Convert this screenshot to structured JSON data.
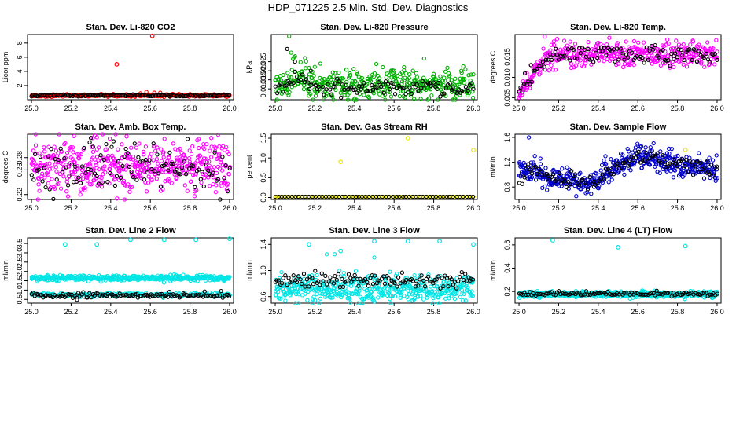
{
  "page": {
    "title": "HDP_071225  2.5 Min. Std. Dev. Diagnostics"
  },
  "chart_data": [
    {
      "id": "p1",
      "type": "scatter",
      "title": "Stan. Dev. Li-820 CO2",
      "xlabel": "",
      "ylabel": "Licor ppm",
      "xlim": [
        24.98,
        26.02
      ],
      "ylim": [
        0,
        9.2
      ],
      "xticks": [
        "25.0",
        "25.2",
        "25.4",
        "25.6",
        "25.8",
        "26.0"
      ],
      "xtick_values": [
        25.0,
        25.2,
        25.4,
        25.6,
        25.8,
        26.0
      ],
      "yticks": [
        "2",
        "4",
        "6",
        "8"
      ],
      "ytick_values": [
        2,
        4,
        6,
        8
      ],
      "series": [
        {
          "name": "primary",
          "color": "#ff0000",
          "gen": {
            "base": 0.6,
            "noise": 0.08,
            "n": 300
          },
          "extra": [
            [
              25.01,
              0.5
            ],
            [
              25.55,
              0.9
            ],
            [
              25.58,
              1.1
            ],
            [
              25.62,
              1.0
            ],
            [
              25.65,
              1.0
            ],
            [
              25.8,
              0.8
            ],
            [
              25.95,
              0.7
            ]
          ]
        },
        {
          "name": "reference",
          "color": "#000000",
          "gen": {
            "base": 0.6,
            "noise": 0.07,
            "n": 120
          },
          "extra": []
        }
      ],
      "outliers": [
        {
          "x": 25.43,
          "y": 5.0,
          "color": "#ff0000"
        },
        {
          "x": 25.61,
          "y": 9.0,
          "color": "#ff0000"
        }
      ]
    },
    {
      "id": "p2",
      "type": "scatter",
      "title": "Stan. Dev. Li-820 Pressure",
      "xlabel": "",
      "ylabel": "kPa",
      "xlim": [
        24.98,
        26.02
      ],
      "ylim": [
        0.004,
        0.04
      ],
      "xticks": [
        "25.0",
        "25.2",
        "25.4",
        "25.6",
        "25.8",
        "26.0"
      ],
      "xtick_values": [
        25.0,
        25.2,
        25.4,
        25.6,
        25.8,
        26.0
      ],
      "yticks": [
        "0.010",
        "0.015",
        "0.020",
        "0.025"
      ],
      "ytick_values": [
        0.01,
        0.015,
        0.02,
        0.025
      ],
      "series": [
        {
          "name": "primary",
          "color": "#00b000",
          "gen": {
            "base": 0.012,
            "noise": 0.004,
            "n": 420
          },
          "extra": [
            [
              25.07,
              0.039
            ],
            [
              25.08,
              0.03
            ],
            [
              25.1,
              0.028
            ],
            [
              25.15,
              0.027
            ],
            [
              25.6,
              0.02
            ],
            [
              25.65,
              0.022
            ],
            [
              26.0,
              0.018
            ]
          ]
        },
        {
          "name": "reference",
          "color": "#000000",
          "gen": {
            "base": 0.011,
            "noise": 0.002,
            "n": 110
          },
          "extra": [
            [
              25.06,
              0.032
            ],
            [
              25.1,
              0.025
            ],
            [
              25.18,
              0.02
            ]
          ]
        }
      ],
      "outliers": []
    },
    {
      "id": "p3",
      "type": "scatter",
      "title": "Stan. Dev. Li-820 Temp.",
      "xlabel": "",
      "ylabel": "degrees C",
      "xlim": [
        24.98,
        26.02
      ],
      "ylim": [
        0.0045,
        0.0205
      ],
      "xticks": [
        "25.0",
        "25.2",
        "25.4",
        "25.6",
        "25.8",
        "26.0"
      ],
      "xtick_values": [
        25.0,
        25.2,
        25.4,
        25.6,
        25.8,
        26.0
      ],
      "yticks": [
        "0.005",
        "0.010",
        "0.015"
      ],
      "ytick_values": [
        0.005,
        0.01,
        0.015
      ],
      "series": [
        {
          "name": "primary",
          "color": "#ff00ff",
          "gen": {
            "base": 0.0155,
            "noise": 0.0015,
            "n": 420
          },
          "extra": [
            [
              25.0,
              0.005
            ],
            [
              25.01,
              0.007
            ],
            [
              25.02,
              0.009
            ],
            [
              25.04,
              0.011
            ],
            [
              25.06,
              0.013
            ],
            [
              25.13,
              0.02
            ]
          ]
        },
        {
          "name": "reference",
          "color": "#000000",
          "gen": {
            "base": 0.0155,
            "noise": 0.0012,
            "n": 110
          },
          "extra": [
            [
              25.03,
              0.011
            ],
            [
              25.06,
              0.013
            ]
          ]
        }
      ],
      "outliers": []
    },
    {
      "id": "p4",
      "type": "scatter",
      "title": "Stan. Dev. Amb. Box Temp.",
      "xlabel": "",
      "ylabel": "degrees C",
      "xlim": [
        24.98,
        26.02
      ],
      "ylim": [
        0.212,
        0.318
      ],
      "xticks": [
        "25.0",
        "25.2",
        "25.4",
        "25.6",
        "25.8",
        "26.0"
      ],
      "xtick_values": [
        25.0,
        25.2,
        25.4,
        25.6,
        25.8,
        26.0
      ],
      "yticks": [
        "0.22",
        "0.26",
        "0.28"
      ],
      "ytick_values": [
        0.22,
        0.26,
        0.28
      ],
      "series": [
        {
          "name": "primary",
          "color": "#ff00ff",
          "gen": {
            "base": 0.265,
            "noise": 0.022,
            "n": 500
          },
          "extra": [
            [
              25.33,
              0.313
            ],
            [
              25.31,
              0.312
            ]
          ]
        },
        {
          "name": "reference",
          "color": "#000000",
          "gen": {
            "base": 0.262,
            "noise": 0.022,
            "n": 110
          },
          "extra": [
            [
              25.3,
              0.312
            ]
          ]
        }
      ],
      "outliers": []
    },
    {
      "id": "p5",
      "type": "scatter",
      "title": "Stan. Dev. Gas Stream RH",
      "xlabel": "",
      "ylabel": "percent",
      "xlim": [
        24.98,
        26.02
      ],
      "ylim": [
        -0.05,
        1.6
      ],
      "xticks": [
        "25.0",
        "25.2",
        "25.4",
        "25.6",
        "25.8",
        "26.0"
      ],
      "xtick_values": [
        25.0,
        25.2,
        25.4,
        25.6,
        25.8,
        26.0
      ],
      "yticks": [
        "0.0",
        "0.5",
        "1.0",
        "1.5"
      ],
      "ytick_values": [
        0.0,
        0.5,
        1.0,
        1.5
      ],
      "series": [
        {
          "name": "primary",
          "color": "#e8e800",
          "gen": {
            "base": 0.02,
            "noise": 0.0,
            "n": 90
          },
          "extra": []
        },
        {
          "name": "reference",
          "color": "#000000",
          "gen": {
            "base": 0.02,
            "noise": 0.0,
            "n": 60
          },
          "extra": []
        }
      ],
      "outliers": [
        {
          "x": 25.0,
          "y": 0.0,
          "color": "#e8e800"
        },
        {
          "x": 25.33,
          "y": 0.9,
          "color": "#e8e800"
        },
        {
          "x": 25.67,
          "y": 1.5,
          "color": "#e8e800"
        },
        {
          "x": 26.0,
          "y": 1.2,
          "color": "#e8e800"
        }
      ]
    },
    {
      "id": "p6",
      "type": "scatter",
      "title": "Stan. Dev. Sample Flow",
      "xlabel": "",
      "ylabel": "ml/min",
      "xlim": [
        24.98,
        26.02
      ],
      "ylim": [
        0.6,
        1.65
      ],
      "xticks": [
        "25.0",
        "25.2",
        "25.4",
        "25.6",
        "25.8",
        "26.0"
      ],
      "xtick_values": [
        25.0,
        25.2,
        25.4,
        25.6,
        25.8,
        26.0
      ],
      "yticks": [
        "0.8",
        "1.2",
        "1.6"
      ],
      "ytick_values": [
        0.8,
        1.2,
        1.6
      ],
      "series": [
        {
          "name": "primary",
          "color": "#0000cc",
          "gen": {
            "curve": "flow",
            "noise": 0.09,
            "n": 480
          },
          "extra": [
            [
              25.05,
              1.6
            ],
            [
              25.08,
              1.3
            ]
          ]
        },
        {
          "name": "reference",
          "color": "#000000",
          "gen": {
            "curve": "flow",
            "noise": 0.07,
            "n": 110
          },
          "extra": []
        }
      ],
      "outliers": [
        {
          "x": 25.84,
          "y": 1.4,
          "color": "#e8e800"
        }
      ]
    },
    {
      "id": "p7",
      "type": "scatter",
      "title": "Stan. Dev. Line 2 Flow",
      "xlabel": "",
      "ylabel": "ml/min",
      "xlim": [
        24.98,
        26.02
      ],
      "ylim": [
        0.3,
        3.8
      ],
      "xticks": [
        "25.0",
        "25.2",
        "25.4",
        "25.6",
        "25.8",
        "26.0"
      ],
      "xtick_values": [
        25.0,
        25.2,
        25.4,
        25.6,
        25.8,
        26.0
      ],
      "yticks": [
        "0.5",
        "1.0",
        "1.5",
        "2.0",
        "2.5",
        "3.0",
        "3.5"
      ],
      "ytick_values": [
        0.5,
        1.0,
        1.5,
        2.0,
        2.5,
        3.0,
        3.5
      ],
      "series": [
        {
          "name": "primary",
          "color": "#00e5e5",
          "gen": {
            "base": 1.65,
            "noise": 0.07,
            "n": 420
          },
          "extra": [
            [
              25.0,
              0.8
            ],
            [
              25.33,
              0.65
            ],
            [
              25.8,
              0.7
            ]
          ]
        },
        {
          "name": "secondary",
          "color": "#00e5e5",
          "gen": {
            "base": 0.75,
            "noise": 0.05,
            "n": 200
          },
          "extra": []
        },
        {
          "name": "reference",
          "color": "#000000",
          "gen": {
            "base": 0.72,
            "noise": 0.06,
            "n": 120
          },
          "extra": [
            [
              25.23,
              0.48
            ]
          ]
        }
      ],
      "outliers": [
        {
          "x": 25.17,
          "y": 3.45,
          "color": "#00e5e5"
        },
        {
          "x": 25.33,
          "y": 3.45,
          "color": "#00e5e5"
        },
        {
          "x": 25.5,
          "y": 3.7,
          "color": "#00e5e5"
        },
        {
          "x": 25.67,
          "y": 3.7,
          "color": "#00e5e5"
        },
        {
          "x": 25.83,
          "y": 3.7,
          "color": "#00e5e5"
        },
        {
          "x": 26.0,
          "y": 3.75,
          "color": "#00e5e5"
        }
      ]
    },
    {
      "id": "p8",
      "type": "scatter",
      "title": "Stan. Dev. Line 3 Flow",
      "xlabel": "",
      "ylabel": "ml/min",
      "xlim": [
        24.98,
        26.02
      ],
      "ylim": [
        0.5,
        1.5
      ],
      "xticks": [
        "25.0",
        "25.2",
        "25.4",
        "25.6",
        "25.8",
        "26.0"
      ],
      "xtick_values": [
        25.0,
        25.2,
        25.4,
        25.6,
        25.8,
        26.0
      ],
      "yticks": [
        "0.6",
        "1.0",
        "1.4"
      ],
      "ytick_values": [
        0.6,
        1.0,
        1.4
      ],
      "series": [
        {
          "name": "primary",
          "color": "#00e5e5",
          "gen": {
            "base": 0.72,
            "noise": 0.1,
            "n": 500
          },
          "extra": [
            [
              25.26,
              1.25
            ],
            [
              25.3,
              1.25
            ],
            [
              25.5,
              1.2
            ]
          ]
        },
        {
          "name": "reference",
          "color": "#000000",
          "gen": {
            "base": 0.85,
            "noise": 0.06,
            "n": 120
          },
          "extra": []
        }
      ],
      "outliers": [
        {
          "x": 25.17,
          "y": 1.4,
          "color": "#00e5e5"
        },
        {
          "x": 25.33,
          "y": 1.3,
          "color": "#00e5e5"
        },
        {
          "x": 25.5,
          "y": 1.45,
          "color": "#00e5e5"
        },
        {
          "x": 25.67,
          "y": 1.45,
          "color": "#00e5e5"
        },
        {
          "x": 25.83,
          "y": 1.45,
          "color": "#00e5e5"
        },
        {
          "x": 26.0,
          "y": 1.4,
          "color": "#00e5e5"
        }
      ]
    },
    {
      "id": "p9",
      "type": "scatter",
      "title": "Stan. Dev. Line 4 (LT) Flow",
      "xlabel": "",
      "ylabel": "ml/min",
      "xlim": [
        24.98,
        26.02
      ],
      "ylim": [
        0.1,
        0.66
      ],
      "xticks": [
        "25.0",
        "25.2",
        "25.4",
        "25.6",
        "25.8",
        "26.0"
      ],
      "xtick_values": [
        25.0,
        25.2,
        25.4,
        25.6,
        25.8,
        26.0
      ],
      "yticks": [
        "0.2",
        "0.4",
        "0.6"
      ],
      "ytick_values": [
        0.2,
        0.4,
        0.6
      ],
      "series": [
        {
          "name": "primary",
          "color": "#00e5e5",
          "gen": {
            "base": 0.175,
            "noise": 0.012,
            "n": 480
          },
          "extra": []
        },
        {
          "name": "reference",
          "color": "#000000",
          "gen": {
            "base": 0.18,
            "noise": 0.01,
            "n": 110
          },
          "extra": []
        }
      ],
      "outliers": [
        {
          "x": 25.17,
          "y": 0.64,
          "color": "#00e5e5"
        },
        {
          "x": 25.5,
          "y": 0.58,
          "color": "#00e5e5"
        },
        {
          "x": 25.84,
          "y": 0.59,
          "color": "#00e5e5"
        }
      ]
    }
  ]
}
